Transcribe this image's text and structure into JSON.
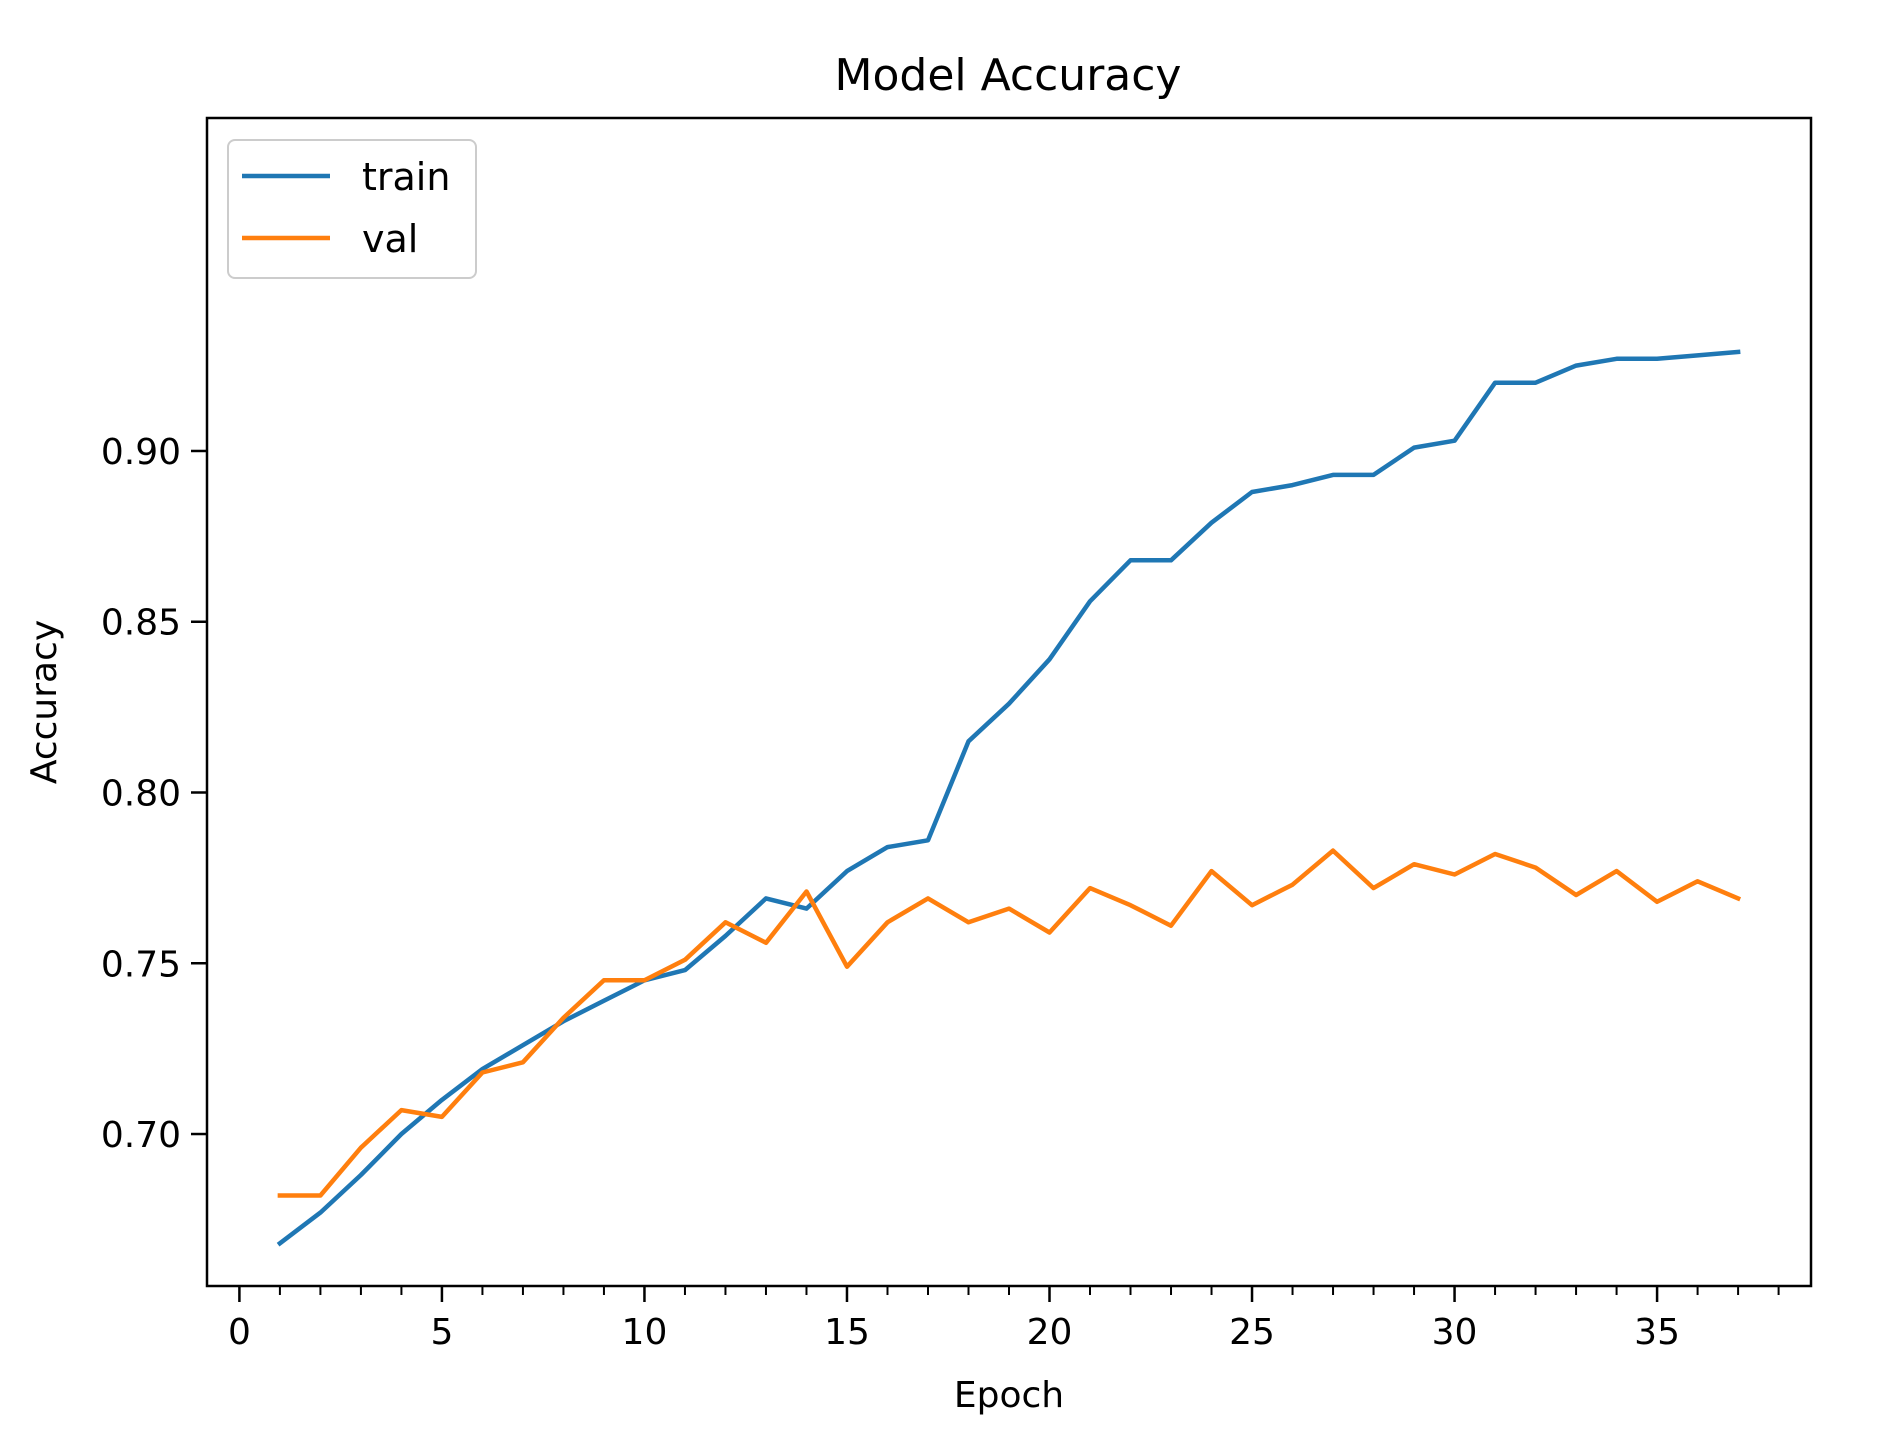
{
  "chart_data": {
    "type": "line",
    "title": "Model Accuracy",
    "xlabel": "Epoch",
    "ylabel": "Accuracy",
    "xlim": [
      -0.8,
      38.8
    ],
    "ylim": [
      0.6555,
      0.9975
    ],
    "grid": false,
    "legend_position": "top-left",
    "x_major_ticks": [
      0,
      5,
      10,
      15,
      20,
      25,
      30,
      35
    ],
    "x_major_tick_labels": [
      "0",
      "5",
      "10",
      "15",
      "20",
      "25",
      "30",
      "35"
    ],
    "x_minor_ticks": [
      1,
      2,
      3,
      4,
      6,
      7,
      8,
      9,
      11,
      12,
      13,
      14,
      16,
      17,
      18,
      19,
      21,
      22,
      23,
      24,
      26,
      27,
      28,
      29,
      31,
      32,
      33,
      34,
      36,
      37,
      38
    ],
    "y_ticks": [
      0.7,
      0.75,
      0.8,
      0.85,
      0.9
    ],
    "y_tick_labels": [
      "0.70",
      "0.75",
      "0.80",
      "0.85",
      "0.90"
    ],
    "x": [
      1,
      2,
      3,
      4,
      5,
      6,
      7,
      8,
      9,
      10,
      11,
      12,
      13,
      14,
      15,
      16,
      17,
      18,
      19,
      20,
      21,
      22,
      23,
      24,
      25,
      26,
      27,
      28,
      29,
      30,
      31,
      32,
      33,
      34,
      35,
      36,
      37
    ],
    "series": [
      {
        "name": "train",
        "color": "#1f77b4",
        "values": [
          0.668,
          0.677,
          0.688,
          0.7,
          0.71,
          0.719,
          0.726,
          0.733,
          0.739,
          0.745,
          0.748,
          0.758,
          0.769,
          0.766,
          0.777,
          0.784,
          0.786,
          0.815,
          0.826,
          0.839,
          0.856,
          0.868,
          0.868,
          0.879,
          0.888,
          0.89,
          0.893,
          0.893,
          0.901,
          0.903,
          0.92,
          0.92,
          0.925,
          0.927,
          0.927,
          0.928,
          0.929
        ]
      },
      {
        "name": "val",
        "color": "#ff7f0e",
        "values": [
          0.682,
          0.682,
          0.696,
          0.707,
          0.705,
          0.718,
          0.721,
          0.734,
          0.745,
          0.745,
          0.751,
          0.762,
          0.756,
          0.771,
          0.749,
          0.762,
          0.769,
          0.762,
          0.766,
          0.759,
          0.772,
          0.767,
          0.761,
          0.777,
          0.767,
          0.773,
          0.783,
          0.772,
          0.779,
          0.776,
          0.782,
          0.778,
          0.77,
          0.777,
          0.768,
          0.774,
          0.769
        ]
      }
    ]
  }
}
